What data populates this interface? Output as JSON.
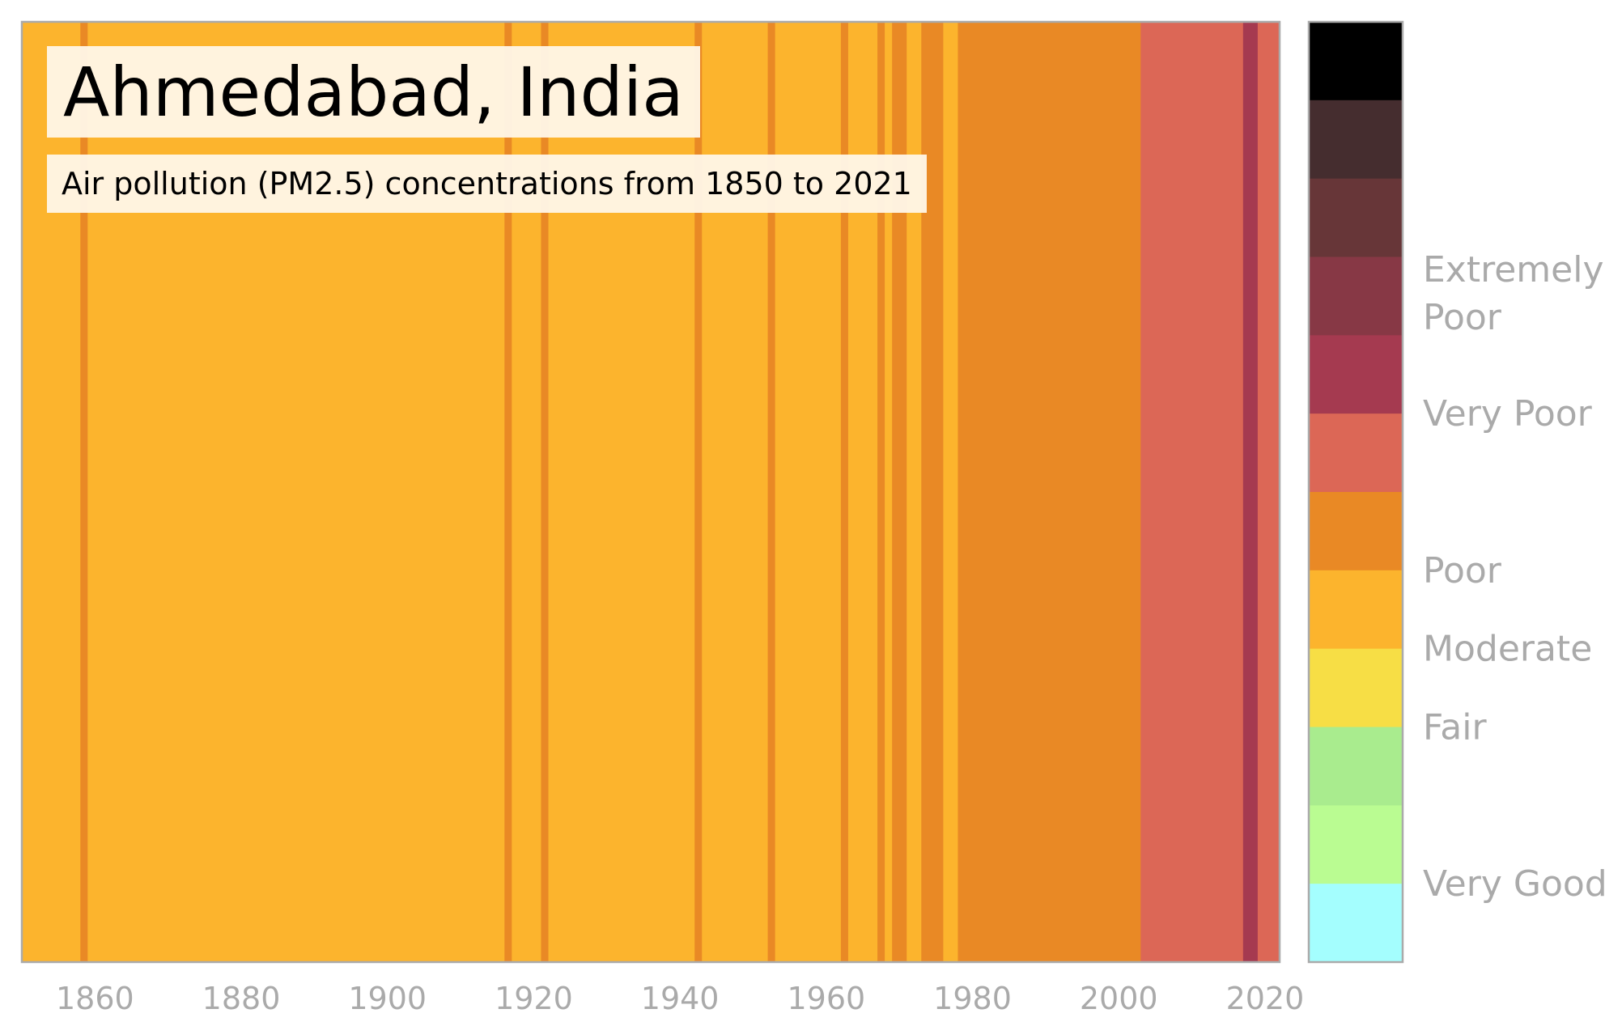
{
  "title": "Ahmedabad, India",
  "subtitle": "Air pollution (PM2.5) concentrations from 1850 to 2021",
  "colors": {
    "moderate": "#FCB42D",
    "poor": "#E98925",
    "very_poor_low": "#DC6756",
    "very_poor_high": "#A53A50",
    "axis": "#aaaaaa"
  },
  "chart_data": {
    "type": "heatmap",
    "xlim": [
      1850,
      2022
    ],
    "x_ticks": [
      1860,
      1880,
      1900,
      1920,
      1940,
      1960,
      1980,
      2000,
      2020
    ],
    "default_category": "Moderate",
    "segments": [
      {
        "start": 1850,
        "end": 1858,
        "category": "Moderate",
        "color": "#FCB42D"
      },
      {
        "start": 1858,
        "end": 1859,
        "category": "Poor",
        "color": "#E98925"
      },
      {
        "start": 1859,
        "end": 1916,
        "category": "Moderate",
        "color": "#FCB42D"
      },
      {
        "start": 1916,
        "end": 1917,
        "category": "Poor",
        "color": "#E98925"
      },
      {
        "start": 1917,
        "end": 1921,
        "category": "Moderate",
        "color": "#FCB42D"
      },
      {
        "start": 1921,
        "end": 1922,
        "category": "Poor",
        "color": "#E98925"
      },
      {
        "start": 1922,
        "end": 1942,
        "category": "Moderate",
        "color": "#FCB42D"
      },
      {
        "start": 1942,
        "end": 1943,
        "category": "Poor",
        "color": "#E98925"
      },
      {
        "start": 1943,
        "end": 1952,
        "category": "Moderate",
        "color": "#FCB42D"
      },
      {
        "start": 1952,
        "end": 1953,
        "category": "Poor",
        "color": "#E98925"
      },
      {
        "start": 1953,
        "end": 1962,
        "category": "Moderate",
        "color": "#FCB42D"
      },
      {
        "start": 1962,
        "end": 1963,
        "category": "Poor",
        "color": "#E98925"
      },
      {
        "start": 1963,
        "end": 1967,
        "category": "Moderate",
        "color": "#FCB42D"
      },
      {
        "start": 1967,
        "end": 1968,
        "category": "Poor",
        "color": "#E98925"
      },
      {
        "start": 1968,
        "end": 1969,
        "category": "Moderate",
        "color": "#FCB42D"
      },
      {
        "start": 1969,
        "end": 1971,
        "category": "Poor",
        "color": "#E98925"
      },
      {
        "start": 1971,
        "end": 1973,
        "category": "Moderate",
        "color": "#FCB42D"
      },
      {
        "start": 1973,
        "end": 1976,
        "category": "Poor",
        "color": "#E98925"
      },
      {
        "start": 1976,
        "end": 1978,
        "category": "Moderate",
        "color": "#FCB42D"
      },
      {
        "start": 1978,
        "end": 2003,
        "category": "Poor",
        "color": "#E98925"
      },
      {
        "start": 2003,
        "end": 2017,
        "category": "Very Poor",
        "color": "#DC6756"
      },
      {
        "start": 2017,
        "end": 2019,
        "category": "Very Poor",
        "color": "#A53A50"
      },
      {
        "start": 2019,
        "end": 2022,
        "category": "Very Poor",
        "color": "#DC6756"
      }
    ],
    "legend": {
      "colors": [
        "#000000",
        "#452D2F",
        "#673638",
        "#873845",
        "#A53A50",
        "#DC6756",
        "#E98925",
        "#FCB42D",
        "#F7DE45",
        "#A9EC8E",
        "#BAFC92",
        "#A4FEFE"
      ],
      "labels": [
        {
          "text": "Extremely Poor",
          "at_boundary": 3.5
        },
        {
          "text": "Very Poor",
          "at_boundary": 5
        },
        {
          "text": "Poor",
          "at_boundary": 7
        },
        {
          "text": "Moderate",
          "at_boundary": 8
        },
        {
          "text": "Fair",
          "at_boundary": 9
        },
        {
          "text": "Very Good",
          "at_boundary": 11
        }
      ]
    }
  }
}
